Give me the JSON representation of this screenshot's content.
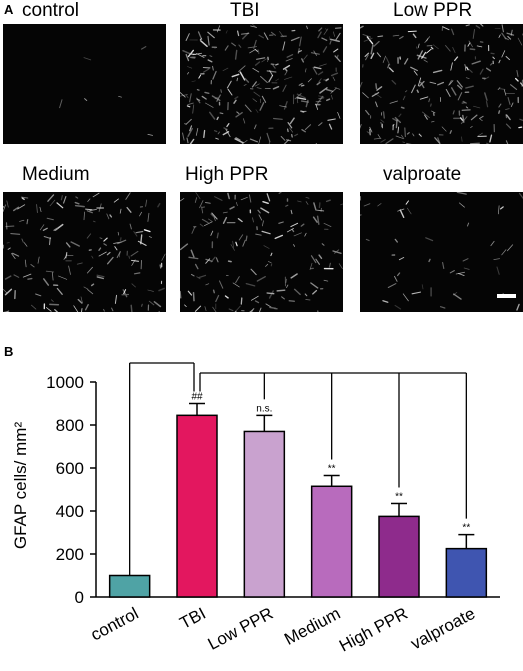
{
  "panel_a": {
    "letter": "A",
    "images": [
      {
        "label": "control",
        "density": 6
      },
      {
        "label": "TBI",
        "density": 230
      },
      {
        "label": "Low PPR",
        "density": 200
      },
      {
        "label": "Medium",
        "density": 150
      },
      {
        "label": "High PPR",
        "density": 150
      },
      {
        "label": "valproate",
        "density": 45
      }
    ]
  },
  "panel_b": {
    "letter": "B"
  },
  "chart_data": {
    "type": "bar",
    "ylabel": "GFAP cells/ mm²",
    "ylim": [
      0,
      1000
    ],
    "yticks": [
      0,
      200,
      400,
      600,
      800,
      1000
    ],
    "categories": [
      "control",
      "TBI",
      "Low PPR",
      "Medium",
      "High PPR",
      "valproate"
    ],
    "values": [
      100,
      845,
      770,
      515,
      375,
      225
    ],
    "errors": [
      0,
      55,
      75,
      50,
      60,
      65
    ],
    "colors": [
      "#4fa3a5",
      "#e3175f",
      "#c9a2cf",
      "#b86bbd",
      "#8e2b8c",
      "#3f55b0"
    ],
    "annotations": [
      "",
      "##",
      "n.s.",
      "**",
      "**",
      "**"
    ],
    "grid": false
  }
}
